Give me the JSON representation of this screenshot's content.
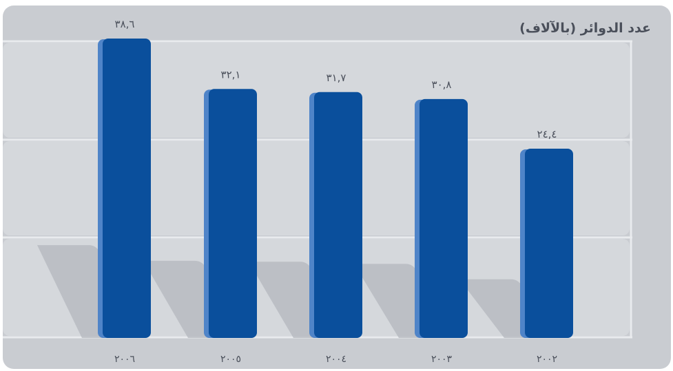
{
  "chart_data": {
    "type": "bar",
    "title": "عدد الدوائر (بالآلاف)",
    "categories": [
      "٢٠٠٦",
      "٢٠٠٥",
      "٢٠٠٤",
      "٢٠٠٣",
      "٢٠٠٢"
    ],
    "values": [
      38.6,
      32.1,
      31.7,
      30.8,
      24.4
    ],
    "value_labels": [
      "٣٨,٦",
      "٣٢,١",
      "٣١,٧",
      "٣٠,٨",
      "٢٤,٤"
    ],
    "ylim": [
      0,
      40
    ],
    "grid": true,
    "colors": {
      "bar": "#0a4f9c",
      "bar_edge": "#4f84c8",
      "background": "#c9ccd1",
      "grid_band": "#d5d8dc",
      "grid_line": "#e9ebee",
      "shadow": "#b3b7bd"
    }
  }
}
